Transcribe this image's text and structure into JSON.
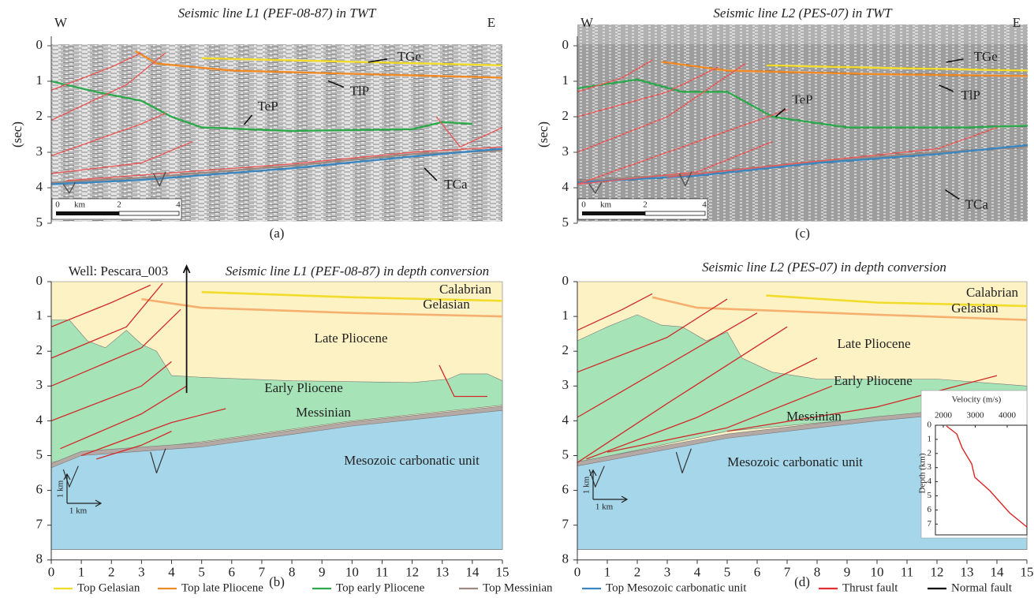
{
  "panels": [
    {
      "label": "(a)",
      "title": "Seismic line L1 (PEF-08-87) in TWT",
      "west": "W",
      "east": "E",
      "y_axis_label": "(sec)",
      "yticks": [
        0,
        1,
        2,
        3,
        4,
        5
      ],
      "horizon_labels": [
        "TGe",
        "TlP",
        "TeP",
        "TCa"
      ],
      "scale_bar": [
        "0",
        "km",
        "2",
        "4"
      ]
    },
    {
      "label": "(b)",
      "title": "Seismic line L1 (PEF-08-87) in depth conversion",
      "well": "Well: Pescara_003",
      "yticks": [
        0,
        1,
        2,
        3,
        4,
        5,
        6,
        7,
        8
      ],
      "xticks": [
        0,
        1,
        2,
        3,
        4,
        5,
        6,
        7,
        8,
        9,
        10,
        11,
        12,
        13,
        14,
        15
      ],
      "units": [
        "Calabrian",
        "Gelasian",
        "Late Pliocene",
        "Early Pliocene",
        "Messinian",
        "Mesozoic carbonatic unit"
      ],
      "scale_arrows": [
        "1 km",
        "1 km"
      ]
    },
    {
      "label": "(c)",
      "title": "Seismic line L2 (PES-07) in TWT",
      "west": "W",
      "east": "E",
      "y_axis_label": "(sec)",
      "yticks": [
        0,
        1,
        2,
        3,
        4,
        5
      ],
      "horizon_labels": [
        "TGe",
        "TlP",
        "TeP",
        "TCa"
      ],
      "scale_bar": [
        "0",
        "km",
        "2",
        "4"
      ]
    },
    {
      "label": "(d)",
      "title": "Seismic line L2 (PES-07) in depth conversion",
      "yticks": [
        0,
        1,
        2,
        3,
        4,
        5,
        6,
        7,
        8
      ],
      "xticks": [
        0,
        1,
        2,
        3,
        4,
        5,
        6,
        7,
        8,
        9,
        10,
        11,
        12,
        13,
        14,
        15
      ],
      "units": [
        "Calabrian",
        "Gelasian",
        "Late Pliocene",
        "Early Pliocene",
        "Messinian",
        "Mesozoic carbonatic unit"
      ],
      "scale_arrows": [
        "1 km",
        "1 km"
      ],
      "inset": {
        "x_label": "Velocity (m/s)",
        "xticks": [
          2000,
          3000,
          4000
        ],
        "y_label": "Depth (km)",
        "yticks": [
          0,
          1,
          2,
          3,
          4,
          5,
          6,
          7
        ]
      }
    }
  ],
  "legend": [
    {
      "name": "Top Gelasian",
      "color": "#f2dc2a"
    },
    {
      "name": "Top late Pliocene",
      "color": "#f08a24"
    },
    {
      "name": "Top early Pliocene",
      "color": "#2ea84c"
    },
    {
      "name": "Top Messinian",
      "color": "#9c8a80"
    },
    {
      "name": "Top Mesozoic carbonatic unit",
      "color": "#3a86c0"
    },
    {
      "name": "Thrust fault",
      "color": "#e03030"
    },
    {
      "name": "Normal fault",
      "color": "#000000"
    }
  ]
}
